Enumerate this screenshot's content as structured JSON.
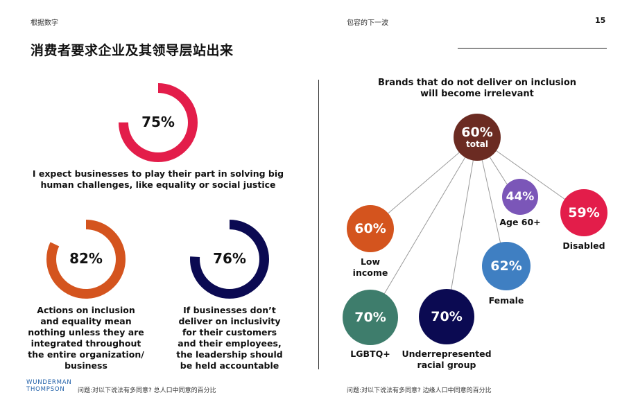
{
  "header": {
    "left": "根据数字",
    "center": "包容的下一波",
    "page_number": "15"
  },
  "title": "消费者要求企业及其领导层站出来",
  "left_panel": {
    "donuts": [
      {
        "pct_label": "75%",
        "value": 75,
        "color": "#e31d4a",
        "caption": "I expect businesses to play their part in solving big human challenges, like equality or social justice"
      },
      {
        "pct_label": "82%",
        "value": 82,
        "color": "#d4541e",
        "caption": "Actions on inclusion and equality mean nothing unless they are integrated throughout the entire organization/ business"
      },
      {
        "pct_label": "76%",
        "value": 76,
        "color": "#0b0a52",
        "caption": "If businesses don’t deliver on inclusivity for their customers and their employees, the leadership should be held accountable"
      }
    ]
  },
  "right_panel": {
    "heading": "Brands that do not deliver on inclusion will become irrelevant",
    "center_bubble": {
      "value": "60%",
      "sub": "total",
      "color": "#6b2b22"
    },
    "bubbles": [
      {
        "value": "44%",
        "label": "Age 60+",
        "color": "#7b56b8"
      },
      {
        "value": "59%",
        "label": "Disabled",
        "color": "#e31d4a"
      },
      {
        "value": "60%",
        "label": "Low income",
        "color": "#d4541e"
      },
      {
        "value": "62%",
        "label": "Female",
        "color": "#3f7fc2"
      },
      {
        "value": "70%",
        "label": "LGBTQ+",
        "color": "#3e7d6c"
      },
      {
        "value": "70%",
        "label": "Underrepresented racial group",
        "color": "#0b0a52"
      }
    ]
  },
  "footer": {
    "logo_line1": "WUNDERMAN",
    "logo_line2": "THOMPSON",
    "left_note": "问题:对以下说法有多同意? 总人口中同意的百分比",
    "right_note": "问题:对以下说法有多同意? 边缘人口中同意的百分比"
  }
}
